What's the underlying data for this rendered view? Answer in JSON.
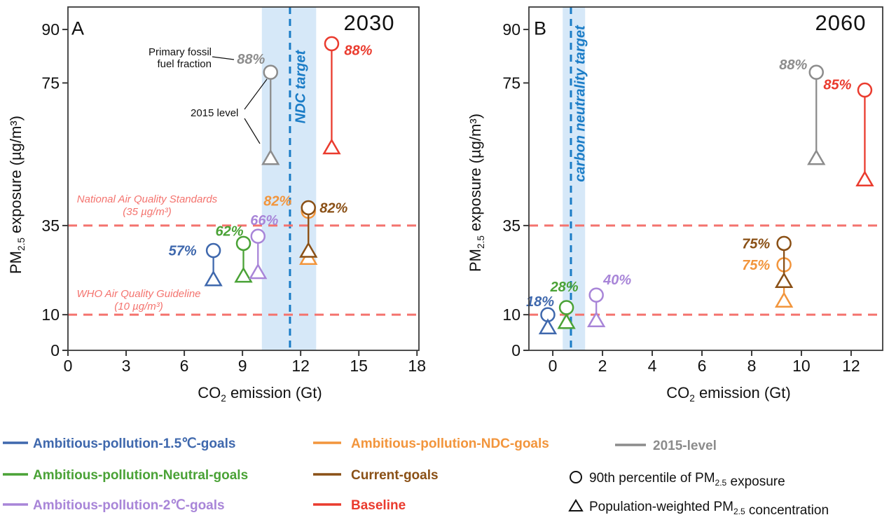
{
  "colors": {
    "scenario_blue": "#3F68AD",
    "scenario_green": "#4AA236",
    "scenario_purple": "#A885D8",
    "scenario_orange": "#F2953C",
    "scenario_brown": "#8A5016",
    "scenario_red": "#EA3B2E",
    "scenario_gray": "#8C8C8C",
    "guideline_red": "#F4736E",
    "target_blue": "#1A7CC6",
    "target_band": "#D6E8F8",
    "axis": "#3A3A3A",
    "text": "#111111"
  },
  "chart_data": [
    {
      "type": "scatter",
      "panel_label": "A",
      "title": "2030",
      "xlabel": "CO2 emission (Gt)",
      "ylabel": "PM2.5 exposure (µg/m³)",
      "xlim": [
        0,
        18.1
      ],
      "ylim": [
        0,
        96.3
      ],
      "xticks": [
        0,
        3,
        6,
        9,
        12,
        15,
        18
      ],
      "yticks": [
        0,
        10,
        35,
        75,
        90
      ],
      "grid": false,
      "legend_position": "bottom",
      "target": {
        "label": "NDC target",
        "line_x": 11.45,
        "band": [
          10.0,
          12.8
        ]
      },
      "guidelines": [
        {
          "y": 35,
          "lines": [
            "National Air Quality Standards",
            "(35 µg/m³)"
          ]
        },
        {
          "y": 10,
          "lines": [
            "WHO Air Quality Guideline",
            "(10 µg/m³)"
          ]
        }
      ],
      "series": [
        {
          "name": "2015-level",
          "color_key": "scenario_gray",
          "x": 10.45,
          "p90_exposure": 78,
          "pop_weighted": 54,
          "fossil_fraction": "88%",
          "label_offset": [
            -28,
            -19
          ]
        },
        {
          "name": "Baseline",
          "color_key": "scenario_red",
          "x": 13.6,
          "p90_exposure": 86,
          "pop_weighted": 57,
          "fossil_fraction": "88%",
          "label_offset": [
            38,
            9
          ]
        },
        {
          "name": "Ambitious-pollution-1.5℃-goals",
          "color_key": "scenario_blue",
          "x": 7.5,
          "p90_exposure": 28,
          "pop_weighted": 20,
          "fossil_fraction": "57%",
          "label_offset": [
            -44,
            0
          ]
        },
        {
          "name": "Ambitious-pollution-Neutral-goals",
          "color_key": "scenario_green",
          "x": 9.05,
          "p90_exposure": 30,
          "pop_weighted": 21,
          "fossil_fraction": "62%",
          "label_offset": [
            -20,
            -18
          ]
        },
        {
          "name": "Ambitious-pollution-2℃-goals",
          "color_key": "scenario_purple",
          "x": 9.8,
          "p90_exposure": 32,
          "pop_weighted": 22,
          "fossil_fraction": "66%",
          "label_offset": [
            9,
            -23
          ]
        },
        {
          "name": "Ambitious-pollution-NDC-goals",
          "color_key": "scenario_orange",
          "x": 12.4,
          "p90_exposure": 39,
          "pop_weighted": 26,
          "fossil_fraction": "82%",
          "label_offset": [
            -44,
            -15
          ]
        },
        {
          "name": "Current-goals",
          "color_key": "scenario_brown",
          "x": 12.4,
          "p90_exposure": 40,
          "pop_weighted": 28,
          "fossil_fraction": "82%",
          "label_offset": [
            36,
            0
          ]
        }
      ],
      "annotations": {
        "fossil_pointer": [
          "Primary fossil",
          "fuel fraction"
        ],
        "level_pointer": "2015 level"
      }
    },
    {
      "type": "scatter",
      "panel_label": "B",
      "title": "2060",
      "xlabel": "CO2 emission (Gt)",
      "ylabel": "PM2.5 exposure (µg/m³)",
      "xlim": [
        -0.96,
        13.27
      ],
      "ylim": [
        0,
        96.3
      ],
      "xticks": [
        0,
        2,
        4,
        6,
        8,
        10,
        12
      ],
      "yticks": [
        0,
        10,
        35,
        75,
        90
      ],
      "grid": false,
      "target": {
        "label": "carbon neutrality target",
        "line_x": 0.73,
        "band": [
          0.4,
          1.3
        ]
      },
      "guidelines": [
        {
          "y": 35,
          "lines": []
        },
        {
          "y": 10,
          "lines": []
        }
      ],
      "series": [
        {
          "name": "2015-level",
          "color_key": "scenario_gray",
          "x": 10.6,
          "p90_exposure": 78,
          "pop_weighted": 54,
          "fossil_fraction": "88%",
          "label_offset": [
            -33,
            -11
          ]
        },
        {
          "name": "Baseline",
          "color_key": "scenario_red",
          "x": 12.55,
          "p90_exposure": 73,
          "pop_weighted": 48,
          "fossil_fraction": "85%",
          "label_offset": [
            -39,
            -8
          ]
        },
        {
          "name": "Ambitious-pollution-1.5℃-goals",
          "color_key": "scenario_blue",
          "x": -0.2,
          "p90_exposure": 10,
          "pop_weighted": 6.5,
          "fossil_fraction": "18%",
          "label_offset": [
            -11,
            -19
          ]
        },
        {
          "name": "Ambitious-pollution-Neutral-goals",
          "color_key": "scenario_green",
          "x": 0.55,
          "p90_exposure": 12,
          "pop_weighted": 8,
          "fossil_fraction": "28%",
          "label_offset": [
            -3,
            -30
          ]
        },
        {
          "name": "Ambitious-pollution-2℃-goals",
          "color_key": "scenario_purple",
          "x": 1.75,
          "p90_exposure": 15.5,
          "pop_weighted": 8.5,
          "fossil_fraction": "40%",
          "label_offset": [
            30,
            -22
          ]
        },
        {
          "name": "Ambitious-pollution-NDC-goals",
          "color_key": "scenario_orange",
          "x": 9.3,
          "p90_exposure": 24,
          "pop_weighted": 14,
          "fossil_fraction": "75%",
          "label_offset": [
            -40,
            0
          ]
        },
        {
          "name": "Current-goals",
          "color_key": "scenario_brown",
          "x": 9.3,
          "p90_exposure": 30,
          "pop_weighted": 19.5,
          "fossil_fraction": "75%",
          "label_offset": [
            -40,
            0
          ]
        }
      ]
    }
  ],
  "legend": {
    "scenarios": [
      {
        "label": "Ambitious-pollution-1.5℃-goals",
        "color_key": "scenario_blue"
      },
      {
        "label": "Ambitious-pollution-Neutral-goals",
        "color_key": "scenario_green"
      },
      {
        "label": "Ambitious-pollution-2℃-goals",
        "color_key": "scenario_purple"
      },
      {
        "label": "Ambitious-pollution-NDC-goals",
        "color_key": "scenario_orange"
      },
      {
        "label": "Current-goals",
        "color_key": "scenario_brown"
      },
      {
        "label": "Baseline",
        "color_key": "scenario_red"
      },
      {
        "label": "2015-level",
        "color_key": "scenario_gray"
      }
    ],
    "markers": [
      {
        "glyph": "circle",
        "label": "90th percentile of PM2.5 exposure"
      },
      {
        "glyph": "triangle",
        "label": "Population-weighted PM2.5 concentration"
      }
    ]
  }
}
